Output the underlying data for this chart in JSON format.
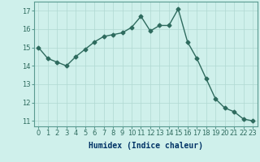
{
  "x": [
    0,
    1,
    2,
    3,
    4,
    5,
    6,
    7,
    8,
    9,
    10,
    11,
    12,
    13,
    14,
    15,
    16,
    17,
    18,
    19,
    20,
    21,
    22,
    23
  ],
  "y": [
    15.0,
    14.4,
    14.2,
    14.0,
    14.5,
    14.9,
    15.3,
    15.6,
    15.7,
    15.8,
    16.1,
    16.7,
    15.9,
    16.2,
    16.2,
    17.1,
    15.3,
    14.4,
    13.3,
    12.2,
    11.7,
    11.5,
    11.1,
    11.0
  ],
  "color": "#2e6b5e",
  "bg_color": "#cff0eb",
  "grid_color": "#b0d8d2",
  "xlabel": "Humidex (Indice chaleur)",
  "xlim": [
    -0.5,
    23.5
  ],
  "ylim": [
    10.7,
    17.5
  ],
  "yticks": [
    11,
    12,
    13,
    14,
    15,
    16,
    17
  ],
  "xticks": [
    0,
    1,
    2,
    3,
    4,
    5,
    6,
    7,
    8,
    9,
    10,
    11,
    12,
    13,
    14,
    15,
    16,
    17,
    18,
    19,
    20,
    21,
    22,
    23
  ],
  "marker": "D",
  "markersize": 2.5,
  "linewidth": 1.0,
  "xlabel_fontsize": 7,
  "tick_fontsize": 6,
  "xlabel_color": "#003366",
  "axis_color": "#5a9a90"
}
